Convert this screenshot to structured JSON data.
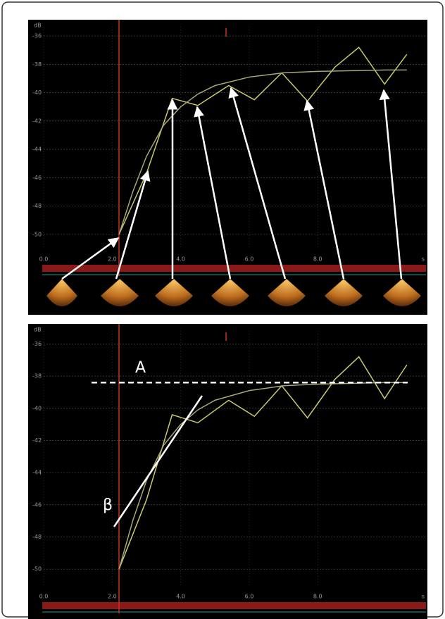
{
  "chart_data": [
    {
      "type": "line",
      "y_label": "dB",
      "x_label": "s",
      "xlim": [
        0,
        11.2
      ],
      "ylim": [
        -51,
        -35.5
      ],
      "xticks": [
        {
          "value": 0,
          "label": "0.0"
        },
        {
          "value": 2,
          "label": "2.0"
        },
        {
          "value": 4,
          "label": "4.0"
        },
        {
          "value": 6,
          "label": "6.0"
        },
        {
          "value": 8,
          "label": "8.0"
        }
      ],
      "yticks": [
        -36,
        -38,
        -40,
        -42,
        -44,
        -46,
        -48,
        -50
      ],
      "grid": true,
      "series": [
        {
          "color": "#c9c96c",
          "x": [
            2.2,
            3.0,
            3.75,
            4.5,
            5.4,
            6.15,
            6.95,
            7.7,
            8.5,
            9.2,
            9.95,
            10.6
          ],
          "values": [
            -50,
            -45.7,
            -40.4,
            -40.9,
            -39.5,
            -40.5,
            -38.6,
            -40.6,
            -38.2,
            -36.8,
            -39.4,
            -37.3
          ]
        },
        {
          "color": "#a7a778",
          "x": [
            2.2,
            2.6,
            3.0,
            3.5,
            4.0,
            4.5,
            5.0,
            6.0,
            7.0,
            8.0,
            9.0,
            10.0,
            10.6
          ],
          "values": [
            -50,
            -47,
            -44.5,
            -42.3,
            -41,
            -40.1,
            -39.5,
            -38.9,
            -38.6,
            -38.5,
            -38.45,
            -38.4,
            -38.4
          ]
        }
      ]
    },
    {
      "type": "line",
      "y_label": "dB",
      "x_label": "s",
      "xlim": [
        0,
        11.2
      ],
      "ylim": [
        -51,
        -35.5
      ],
      "xticks": [
        {
          "value": 0,
          "label": "0.0"
        },
        {
          "value": 2,
          "label": "2.0"
        },
        {
          "value": 4,
          "label": "4.0"
        },
        {
          "value": 6,
          "label": "6.0"
        },
        {
          "value": 8,
          "label": "8.0"
        }
      ],
      "yticks": [
        -36,
        -38,
        -40,
        -42,
        -44,
        -46,
        -48,
        -50
      ],
      "grid": true,
      "series": [
        {
          "color": "#c9c96c",
          "x": [
            2.2,
            3.0,
            3.75,
            4.5,
            5.4,
            6.15,
            6.95,
            7.7,
            8.5,
            9.2,
            9.95,
            10.6
          ],
          "values": [
            -50,
            -45.7,
            -40.4,
            -40.9,
            -39.5,
            -40.5,
            -38.6,
            -40.6,
            -38.2,
            -36.8,
            -39.4,
            -37.3
          ]
        },
        {
          "color": "#a7a778",
          "x": [
            2.2,
            2.6,
            3.0,
            3.5,
            4.0,
            4.5,
            5.0,
            6.0,
            7.0,
            8.0,
            9.0,
            10.0,
            10.6
          ],
          "values": [
            -50,
            -47,
            -44.5,
            -42.3,
            -41,
            -40.1,
            -39.5,
            -38.9,
            -38.6,
            -38.5,
            -38.45,
            -38.4,
            -38.4
          ]
        }
      ],
      "reference_line": -38.4,
      "annotations": [
        {
          "text": "A"
        },
        {
          "text": "β"
        }
      ]
    }
  ]
}
